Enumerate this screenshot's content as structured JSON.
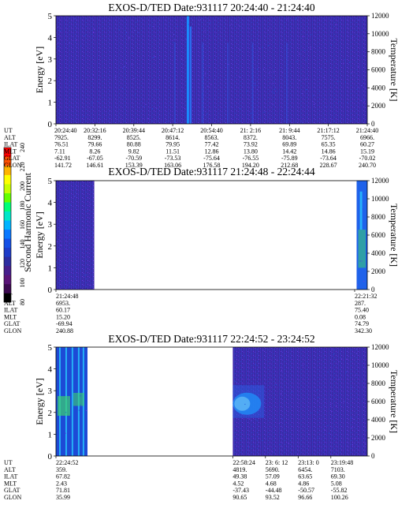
{
  "figure": {
    "colorbar": {
      "label": "Second Harmonic Current",
      "ticks": [
        "80",
        "100",
        "120",
        "140",
        "160",
        "180",
        "200",
        "220",
        "240"
      ],
      "colors": [
        "#000000",
        "#3c0a50",
        "#5a1478",
        "#461e8c",
        "#2d2da0",
        "#1e3cc8",
        "#1450e6",
        "#0a78ff",
        "#00b4ff",
        "#00e6c8",
        "#00ff78",
        "#64ff00",
        "#c8ff00",
        "#ffff00",
        "#ffb400",
        "#ff5000",
        "#ff0000"
      ]
    },
    "colors": {
      "background": "#3b2aa8",
      "speck": "#5a2dd2",
      "stripe": "#1a8cff",
      "hot": "#29d3ff",
      "green": "#3cd26e"
    }
  },
  "chart_data": [
    {
      "type": "heatmap",
      "title": "EXOS-D/TED   Date:931117  20:24:40 - 21:24:40",
      "ylabel": "Energy [eV]",
      "y2label": "Temperature [K]",
      "ylim": [
        0,
        5
      ],
      "yticks": [
        "0",
        "1",
        "2",
        "3",
        "4",
        "5"
      ],
      "y2lim": [
        0,
        12000
      ],
      "y2ticks": [
        "0",
        "2000",
        "4000",
        "6000",
        "8000",
        "10000",
        "12000"
      ],
      "coverage": [
        [
          0,
          1
        ]
      ],
      "orbit_rows": [
        "UT",
        "ALT",
        "ILAT",
        "MLT",
        "GLAT",
        "GLON"
      ],
      "orbit_table": [
        [
          "20:24:40",
          "7925.",
          "76.51",
          "7.11",
          "-62.91",
          "141.72"
        ],
        [
          "20:32:16",
          "8299.",
          "79.66",
          "8.26",
          "-67.05",
          "146.61"
        ],
        [
          "20:39:44",
          "8525.",
          "80.88",
          "9.82",
          "-70.59",
          "153.39"
        ],
        [
          "20:47:12",
          "8614.",
          "79.95",
          "11.51",
          "-73.53",
          "163.06"
        ],
        [
          "20:54:40",
          "8563.",
          "77.42",
          "12.86",
          "-75.64",
          "176.58"
        ],
        [
          "21: 2:16",
          "8372.",
          "73.92",
          "13.80",
          "-76.55",
          "194.20"
        ],
        [
          "21: 9:44",
          "8043.",
          "69.89",
          "14.42",
          "-75.89",
          "212.68"
        ],
        [
          "21:17:12",
          "7575.",
          "65.35",
          "14.86",
          "-73.64",
          "228.67"
        ],
        [
          "21:24:40",
          "6966.",
          "60.27",
          "15.19",
          "-70.02",
          "240.70"
        ]
      ]
    },
    {
      "type": "heatmap",
      "title": "EXOS-D/TED   Date:931117  21:24:48 - 22:24:44",
      "ylabel": "Energy [eV]",
      "y2label": "Temperature [K]",
      "ylim": [
        0,
        5
      ],
      "yticks": [
        "0",
        "1",
        "2",
        "3",
        "4",
        "5"
      ],
      "y2lim": [
        0,
        12000
      ],
      "y2ticks": [
        "0",
        "2000",
        "4000",
        "6000",
        "8000",
        "10000",
        "12000"
      ],
      "coverage": [
        [
          0,
          0.123
        ],
        [
          0.966,
          1
        ]
      ],
      "orbit_rows": [
        "UT",
        "ALT",
        "ILAT",
        "MLT",
        "GLAT",
        "GLON"
      ],
      "orbit_table": [
        [
          "21:24:48",
          "6953.",
          "60.17",
          "15.20",
          "-69.94",
          "240.88"
        ],
        [
          "22:21:32",
          "287.",
          "75.40",
          "0.08",
          "74.79",
          "342.30"
        ]
      ]
    },
    {
      "type": "heatmap",
      "title": "EXOS-D/TED   Date:931117  22:24:52 - 23:24:52",
      "ylabel": "Energy [eV]",
      "y2label": "Temperature [K]",
      "ylim": [
        0,
        5
      ],
      "yticks": [
        "0",
        "1",
        "2",
        "3",
        "4",
        "5"
      ],
      "y2lim": [
        0,
        12000
      ],
      "y2ticks": [
        "0",
        "2000",
        "4000",
        "6000",
        "8000",
        "10000",
        "12000"
      ],
      "coverage": [
        [
          0,
          0.101
        ],
        [
          0.568,
          1
        ]
      ],
      "orbit_rows": [
        "UT",
        "ALT",
        "ILAT",
        "MLT",
        "GLAT",
        "GLON"
      ],
      "orbit_table": [
        [
          "22:24:52",
          "359.",
          "67.82",
          "2.43",
          "71.81",
          "35.99"
        ],
        [
          "22:58:24",
          "4819.",
          "49.38",
          "4.52",
          "-37.43",
          "90.65"
        ],
        [
          "23: 6: 12",
          "5690.",
          "57.09",
          "4.68",
          "-44.48",
          "93.52"
        ],
        [
          "23:13: 0",
          "6454.",
          "63.65",
          "4.86",
          "-50.57",
          "96.66"
        ],
        [
          "23:19:48",
          "7103.",
          "69.30",
          "5.08",
          "-55.82",
          "100.26"
        ]
      ]
    }
  ]
}
